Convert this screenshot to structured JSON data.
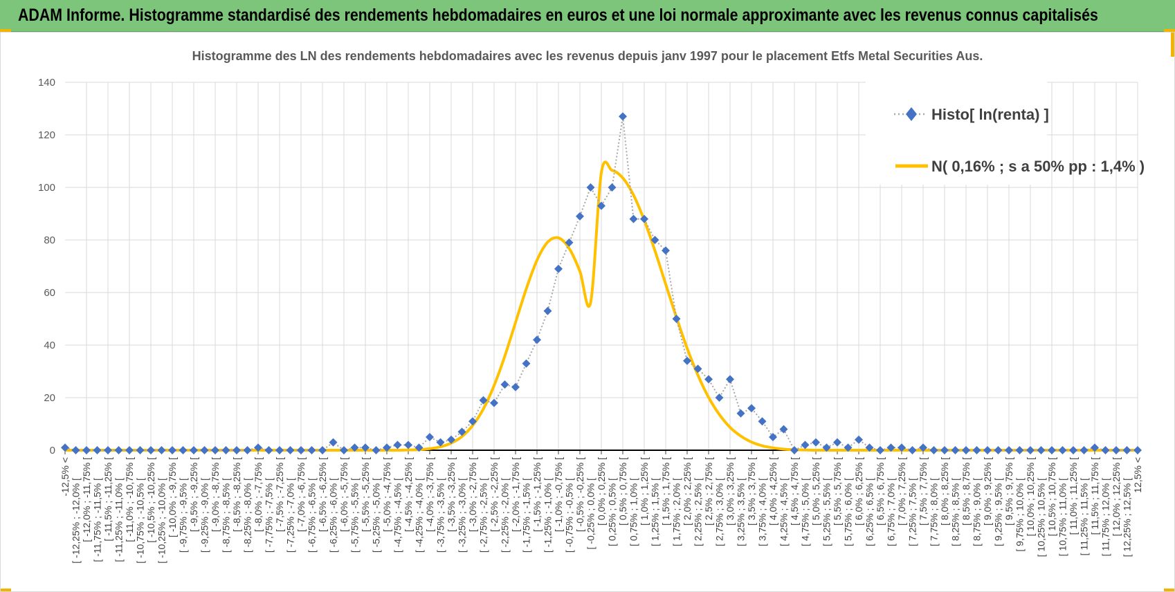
{
  "header": {
    "title": "ADAM Informe. Histogramme standardisé des rendements hebdomadaires en euros et une loi normale approximante avec les revenus connus capitalisés"
  },
  "colors": {
    "header_bg": "#7dc57a",
    "accent": "#f2b400",
    "histo_marker": "#4472c4",
    "histo_line": "#a6a6a6",
    "normal_line": "#ffc000"
  },
  "chart_data": {
    "type": "line",
    "title": "Histogramme des LN des rendements hebdomadaires avec les revenus depuis janv 1997 pour le placement Etfs Metal Securities Aus.",
    "ylim": [
      0,
      140
    ],
    "yticks": [
      "0",
      "20",
      "40",
      "60",
      "80",
      "100",
      "120",
      "140"
    ],
    "grid": true,
    "legend_position": "top-right",
    "categories": [
      "-12,5% <",
      "[ -12,25% ; -12,0% [",
      "[ -12,0% ; -11,75% [",
      "[ -11,75% ; -11,5% [",
      "[ -11,5% ; -11,25% [",
      "[ -11,25% ; -11,0% [",
      "[ -11,0% ; -10,75% [",
      "[ -10,75% ; -10,5% [",
      "[ -10,5% ; -10,25% [",
      "[ -10,25% ; -10,0% [",
      "[ -10,0% ; -9,75% [",
      "[ -9,75% ; -9,5% [",
      "[ -9,5% ; -9,25% [",
      "[ -9,25% ; -9,0% [",
      "[ -9,0% ; -8,75% [",
      "[ -8,75% ; -8,5% [",
      "[ -8,5% ; -8,25% [",
      "[ -8,25% ; -8,0% [",
      "[ -8,0% ; -7,75% [",
      "[ -7,75% ; -7,5% [",
      "[ -7,5% ; -7,25% [",
      "[ -7,25% ; -7,0% [",
      "[ -7,0% ; -6,75% [",
      "[ -6,75% ; -6,5% [",
      "[ -6,5% ; -6,25% [",
      "[ -6,25% ; -6,0% [",
      "[ -6,0% ; -5,75% [",
      "[ -5,75% ; -5,5% [",
      "[ -5,5% ; -5,25% [",
      "[ -5,25% ; -5,0% [",
      "[ -5,0% ; -4,75% [",
      "[ -4,75% ; -4,5% [",
      "[ -4,5% ; -4,25% [",
      "[ -4,25% ; -4,0% [",
      "[ -4,0% ; -3,75% [",
      "[ -3,75% ; -3,5% [",
      "[ -3,5% ; -3,25% [",
      "[ -3,25% ; -3,0% [",
      "[ -3,0% ; -2,75% [",
      "[ -2,75% ; -2,5% [",
      "[ -2,5% ; -2,25% [",
      "[ -2,25% ; -2,0% [",
      "[ -2,0% ; -1,75% [",
      "[ -1,75% ; -1,5% [",
      "[ -1,5% ; -1,25% [",
      "[ -1,25% ; -1,0% [",
      "[ -1,0% ; -0,75% [",
      "[ -0,75% ; -0,5% [",
      "[ -0,5% ; -0,25% [",
      "[ -0,25% ; 0,0% [",
      "[ 0,0% ; 0,25% [",
      "[ 0,25% ; 0,5% [",
      "[ 0,5% ; 0,75% [",
      "[ 0,75% ; 1,0% [",
      "[ 1,0% ; 1,25% [",
      "[ 1,25% ; 1,5% [",
      "[ 1,5% ; 1,75% [",
      "[ 1,75% ; 2,0% [",
      "[ 2,0% ; 2,25% [",
      "[ 2,25% ; 2,5% [",
      "[ 2,5% ; 2,75% [",
      "[ 2,75% ; 3,0% [",
      "[ 3,0% ; 3,25% [",
      "[ 3,25% ; 3,5% [",
      "[ 3,5% ; 3,75% [",
      "[ 3,75% ; 4,0% [",
      "[ 4,0% ; 4,25% [",
      "[ 4,25% ; 4,5% [",
      "[ 4,5% ; 4,75% [",
      "[ 4,75% ; 5,0% [",
      "[ 5,0% ; 5,25% [",
      "[ 5,25% ; 5,5% [",
      "[ 5,5% ; 5,75% [",
      "[ 5,75% ; 6,0% [",
      "[ 6,0% ; 6,25% [",
      "[ 6,25% ; 6,5% [",
      "[ 6,5% ; 6,75% [",
      "[ 6,75% ; 7,0% [",
      "[ 7,0% ; 7,25% [",
      "[ 7,25% ; 7,5% [",
      "[ 7,5% ; 7,75% [",
      "[ 7,75% ; 8,0% [",
      "[ 8,0% ; 8,25% [",
      "[ 8,25% ; 8,5% [",
      "[ 8,5% ; 8,75% [",
      "[ 8,75% ; 9,0% [",
      "[ 9,0% ; 9,25% [",
      "[ 9,25% ; 9,5% [",
      "[ 9,5% ; 9,75% [",
      "[ 9,75% ; 10,0% [",
      "[ 10,0% ; 10,25% [",
      "[ 10,25% ; 10,5% [",
      "[ 10,5% ; 10,75% [",
      "[ 10,75% ; 11,0% [",
      "[ 11,0% ; 11,25% [",
      "[ 11,25% ; 11,5% [",
      "[ 11,5% ; 11,75% [",
      "[ 11,75% ; 12,0% [",
      "[ 12,0% ; 12,25% [",
      "[ 12,25% ; 12,5% [",
      "12,5% <"
    ],
    "series": [
      {
        "name": "Histo[ ln(renta) ]",
        "style": "dotted-line-diamond-markers",
        "values": [
          1,
          0,
          0,
          0,
          0,
          0,
          0,
          0,
          0,
          0,
          0,
          0,
          0,
          0,
          0,
          0,
          0,
          0,
          1,
          0,
          0,
          0,
          0,
          0,
          0,
          3,
          0,
          1,
          1,
          0,
          1,
          2,
          2,
          1,
          5,
          3,
          4,
          7,
          11,
          19,
          18,
          25,
          24,
          33,
          42,
          53,
          69,
          79,
          89,
          100,
          93,
          100,
          127,
          88,
          88,
          80,
          76,
          50,
          34,
          31,
          27,
          20,
          27,
          14,
          16,
          11,
          5,
          8,
          0,
          2,
          3,
          1,
          3,
          1,
          4,
          1,
          0,
          1,
          1,
          0,
          1,
          0,
          0,
          0,
          0,
          0,
          0,
          0,
          0,
          0,
          0,
          0,
          0,
          0,
          0,
          0,
          1,
          0,
          0,
          0,
          0
        ]
      },
      {
        "name": "N( 0,16% ; s a 50% pp : 1,4% )",
        "style": "solid-line",
        "values": [
          0,
          0,
          0,
          0,
          0,
          0,
          0,
          0,
          0,
          0,
          0,
          0,
          0,
          0,
          0,
          0,
          0,
          0,
          0,
          0,
          0,
          0,
          0,
          0,
          0,
          0,
          0,
          0,
          0,
          0,
          0,
          0,
          0.1,
          0.2,
          0.6,
          1.3,
          2.7,
          5.2,
          9.4,
          15.7,
          24.6,
          35.8,
          48.6,
          61.4,
          72.3,
          79.2,
          80.8,
          76.8,
          68.1,
          56.2,
          105.6,
          106.5,
          103.6,
          97.1,
          87.5,
          75.9,
          63.2,
          50.6,
          38.8,
          28.6,
          20.1,
          13.6,
          8.7,
          5.4,
          3.1,
          1.7,
          0.9,
          0.4,
          0.2,
          0.1,
          0,
          0,
          0,
          0,
          0,
          0,
          0,
          0,
          0,
          0,
          0,
          0,
          0,
          0,
          0,
          0,
          0,
          0,
          0,
          0,
          0,
          0,
          0,
          0,
          0,
          0,
          0,
          0,
          0,
          0,
          0
        ]
      }
    ]
  }
}
